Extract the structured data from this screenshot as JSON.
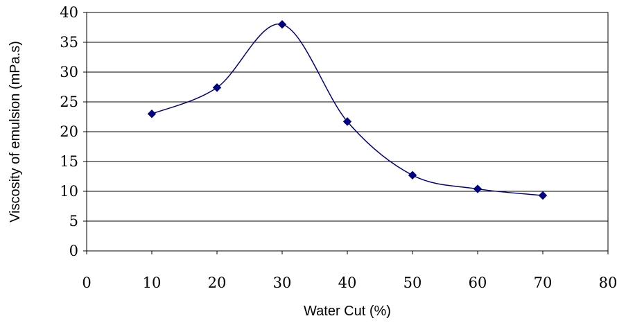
{
  "chart_data": {
    "type": "line",
    "title": "",
    "xlabel": "Water Cut (%)",
    "ylabel": "Viscosity of emulsion (mPa.s)",
    "xlim": [
      0,
      80
    ],
    "ylim": [
      0,
      40
    ],
    "xticks": [
      "0",
      "10",
      "20",
      "30",
      "40",
      "50",
      "60",
      "70",
      "80"
    ],
    "yticks": [
      "0",
      "5",
      "10",
      "15",
      "20",
      "25",
      "30",
      "35",
      "40"
    ],
    "grid": "horizontal",
    "legend": "none",
    "line_style": "smooth",
    "marker": "diamond",
    "series_color": "#000080",
    "series": [
      {
        "x": [
          10,
          20,
          30,
          40,
          50,
          60,
          70
        ],
        "values": [
          23.0,
          27.4,
          38.0,
          21.7,
          12.7,
          10.4,
          9.3
        ]
      }
    ]
  }
}
